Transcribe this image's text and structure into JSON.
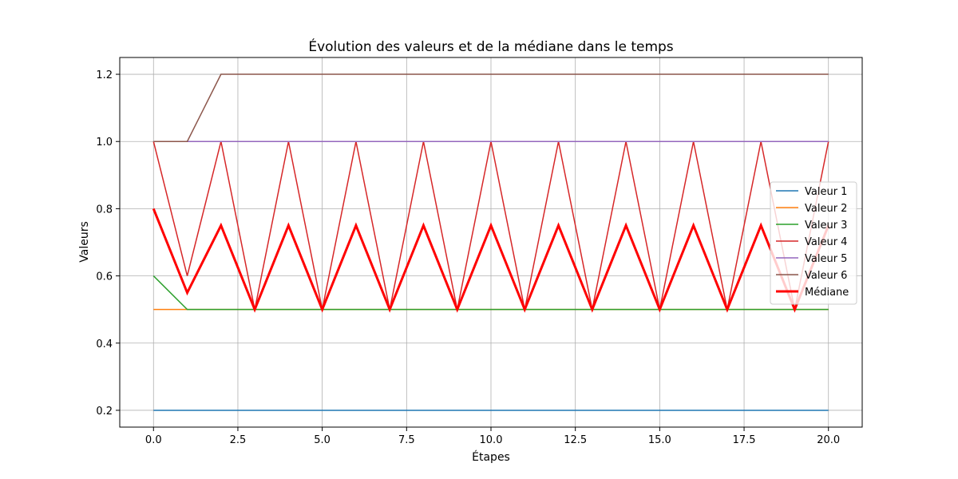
{
  "chart_data": {
    "type": "line",
    "title": "Évolution des valeurs et de la médiane dans le temps",
    "xlabel": "Étapes",
    "ylabel": "Valeurs",
    "xlim": [
      -1,
      21
    ],
    "ylim": [
      0.15,
      1.25
    ],
    "xticks": [
      0,
      2.5,
      5,
      7.5,
      10,
      12.5,
      15,
      17.5,
      20
    ],
    "xtick_labels": [
      "0.0",
      "2.5",
      "5.0",
      "7.5",
      "10.0",
      "12.5",
      "15.0",
      "17.5",
      "20.0"
    ],
    "yticks": [
      0.2,
      0.4,
      0.6,
      0.8,
      1.0,
      1.2
    ],
    "ytick_labels": [
      "0.2",
      "0.4",
      "0.6",
      "0.8",
      "1.0",
      "1.2"
    ],
    "grid": true,
    "legend_position": "center-right",
    "x": [
      0,
      1,
      2,
      3,
      4,
      5,
      6,
      7,
      8,
      9,
      10,
      11,
      12,
      13,
      14,
      15,
      16,
      17,
      18,
      19,
      20
    ],
    "series": [
      {
        "name": "Valeur 1",
        "color": "#1f77b4",
        "width": 1.5,
        "values": [
          0.2,
          0.2,
          0.2,
          0.2,
          0.2,
          0.2,
          0.2,
          0.2,
          0.2,
          0.2,
          0.2,
          0.2,
          0.2,
          0.2,
          0.2,
          0.2,
          0.2,
          0.2,
          0.2,
          0.2,
          0.2
        ]
      },
      {
        "name": "Valeur 2",
        "color": "#ff7f0e",
        "width": 1.5,
        "values": [
          0.5,
          0.5,
          0.5,
          0.5,
          0.5,
          0.5,
          0.5,
          0.5,
          0.5,
          0.5,
          0.5,
          0.5,
          0.5,
          0.5,
          0.5,
          0.5,
          0.5,
          0.5,
          0.5,
          0.5,
          0.5
        ]
      },
      {
        "name": "Valeur 3",
        "color": "#2ca02c",
        "width": 1.5,
        "values": [
          0.6,
          0.5,
          0.5,
          0.5,
          0.5,
          0.5,
          0.5,
          0.5,
          0.5,
          0.5,
          0.5,
          0.5,
          0.5,
          0.5,
          0.5,
          0.5,
          0.5,
          0.5,
          0.5,
          0.5,
          0.5
        ]
      },
      {
        "name": "Valeur 4",
        "color": "#d62728",
        "width": 1.5,
        "values": [
          1.0,
          0.6,
          1.0,
          0.5,
          1.0,
          0.5,
          1.0,
          0.5,
          1.0,
          0.5,
          1.0,
          0.5,
          1.0,
          0.5,
          1.0,
          0.5,
          1.0,
          0.5,
          1.0,
          0.5,
          1.0
        ]
      },
      {
        "name": "Valeur 5",
        "color": "#9467bd",
        "width": 1.5,
        "values": [
          1.0,
          1.0,
          1.0,
          1.0,
          1.0,
          1.0,
          1.0,
          1.0,
          1.0,
          1.0,
          1.0,
          1.0,
          1.0,
          1.0,
          1.0,
          1.0,
          1.0,
          1.0,
          1.0,
          1.0,
          1.0
        ]
      },
      {
        "name": "Valeur 6",
        "color": "#8c564b",
        "width": 1.5,
        "values": [
          1.0,
          1.0,
          1.2,
          1.2,
          1.2,
          1.2,
          1.2,
          1.2,
          1.2,
          1.2,
          1.2,
          1.2,
          1.2,
          1.2,
          1.2,
          1.2,
          1.2,
          1.2,
          1.2,
          1.2,
          1.2
        ]
      },
      {
        "name": "Médiane",
        "color": "#ff0000",
        "width": 3,
        "values": [
          0.8,
          0.55,
          0.75,
          0.5,
          0.75,
          0.5,
          0.75,
          0.5,
          0.75,
          0.5,
          0.75,
          0.5,
          0.75,
          0.5,
          0.75,
          0.5,
          0.75,
          0.5,
          0.75,
          0.5,
          0.75
        ]
      }
    ]
  }
}
